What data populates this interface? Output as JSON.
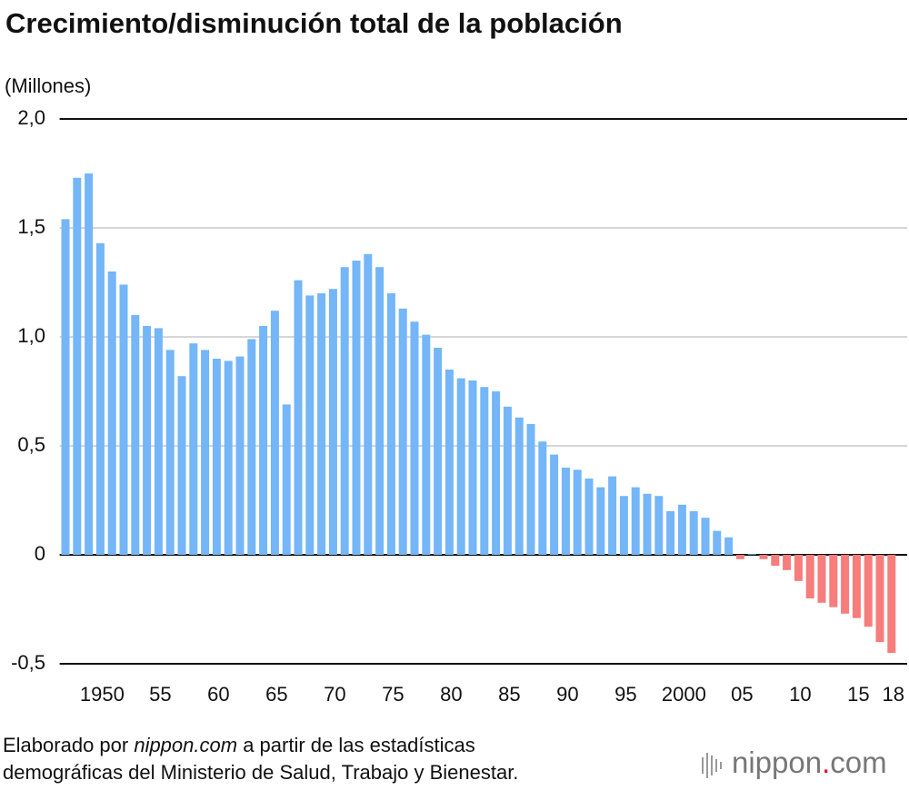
{
  "chart_data": {
    "type": "bar",
    "title": "Crecimiento/disminución total de la población",
    "y_label": "(Millones)",
    "categories": [
      null,
      null,
      null,
      "1950",
      null,
      null,
      null,
      null,
      "55",
      null,
      null,
      null,
      null,
      "60",
      null,
      null,
      null,
      null,
      "65",
      null,
      null,
      null,
      null,
      "70",
      null,
      null,
      null,
      null,
      "75",
      null,
      null,
      null,
      null,
      "80",
      null,
      null,
      null,
      null,
      "85",
      null,
      null,
      null,
      null,
      "90",
      null,
      null,
      null,
      null,
      "95",
      null,
      null,
      null,
      null,
      "2000",
      null,
      null,
      null,
      null,
      "05",
      null,
      null,
      null,
      null,
      "10",
      null,
      null,
      null,
      null,
      "15",
      null,
      null,
      "18"
    ],
    "values": [
      1.54,
      1.73,
      1.75,
      1.43,
      1.3,
      1.24,
      1.1,
      1.05,
      1.04,
      0.94,
      0.82,
      0.97,
      0.94,
      0.9,
      0.89,
      0.91,
      0.99,
      1.05,
      1.12,
      0.69,
      1.26,
      1.19,
      1.2,
      1.22,
      1.32,
      1.35,
      1.38,
      1.32,
      1.2,
      1.13,
      1.07,
      1.01,
      0.95,
      0.85,
      0.81,
      0.8,
      0.77,
      0.75,
      0.68,
      0.63,
      0.6,
      0.52,
      0.46,
      0.4,
      0.39,
      0.35,
      0.31,
      0.36,
      0.27,
      0.31,
      0.28,
      0.27,
      0.2,
      0.23,
      0.2,
      0.17,
      0.11,
      0.08,
      -0.02,
      0.003,
      -0.02,
      -0.05,
      -0.07,
      -0.12,
      -0.2,
      -0.22,
      -0.24,
      -0.27,
      -0.29,
      -0.33,
      -0.4,
      -0.45
    ],
    "colors": {
      "positive": "#74b6f7",
      "negative": "#f77c7c"
    },
    "ylim": [
      -0.5,
      2.0
    ],
    "yticks": [
      {
        "value": -0.5,
        "label": "-0,5"
      },
      0,
      {
        "value": 0.5,
        "label": "0,5"
      },
      {
        "value": 1.0,
        "label": "1,0"
      },
      {
        "value": 1.5,
        "label": "1,5"
      },
      {
        "value": 2.0,
        "label": "2,0"
      }
    ],
    "grid": true
  },
  "footer": {
    "source_before": "Elaborado por ",
    "source_site": "nippon.com",
    "source_after": " a partir de las estadísticas",
    "source_line2": "demográficas del Ministerio de Salud, Trabajo y Bienestar.",
    "logo_main": "nippon",
    "logo_dot": ".",
    "logo_end": "com"
  }
}
